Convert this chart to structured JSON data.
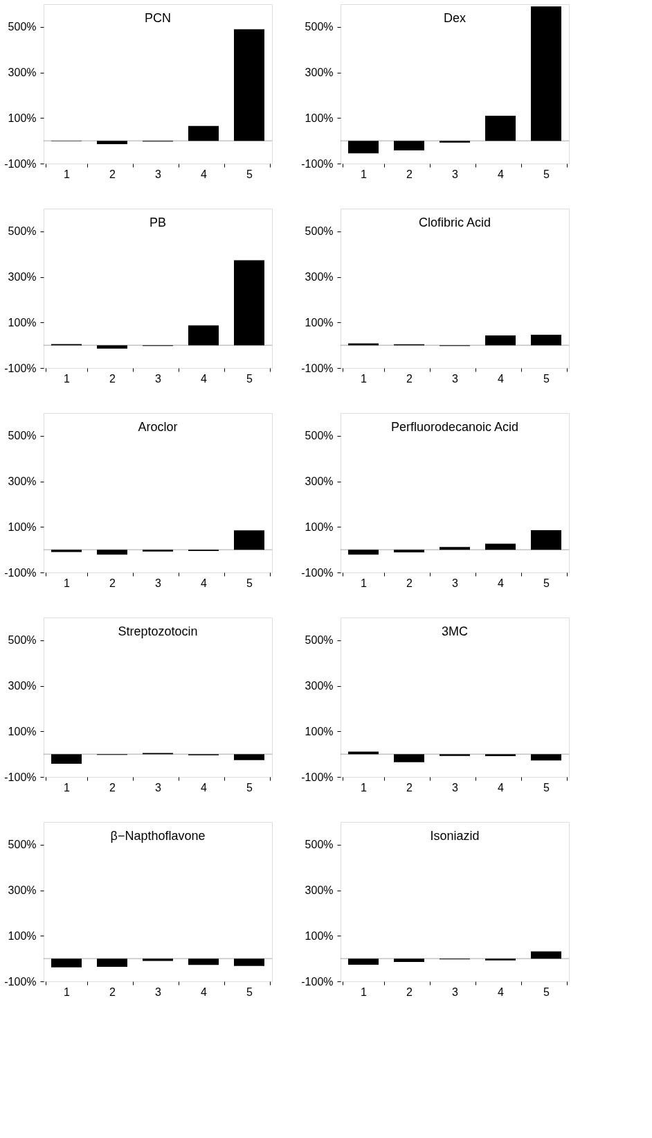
{
  "chart_data": [
    {
      "type": "bar",
      "title": "PCN",
      "categories": [
        "1",
        "2",
        "3",
        "4",
        "5"
      ],
      "values": [
        -2,
        -15,
        -3,
        65,
        490
      ],
      "color": "#000000",
      "ylim": [
        -100,
        600
      ],
      "yticks": [
        {
          "value": -100,
          "label": "-100%"
        },
        {
          "value": 100,
          "label": "100%"
        },
        {
          "value": 300,
          "label": "300%"
        },
        {
          "value": 500,
          "label": "500%"
        }
      ],
      "grid": false
    },
    {
      "type": "bar",
      "title": "Dex",
      "categories": [
        "1",
        "2",
        "3",
        "4",
        "5"
      ],
      "values": [
        -55,
        -42,
        -8,
        110,
        590
      ],
      "color": "#000000",
      "ylim": [
        -100,
        600
      ],
      "yticks": [
        {
          "value": -100,
          "label": "-100%"
        },
        {
          "value": 100,
          "label": "100%"
        },
        {
          "value": 300,
          "label": "300%"
        },
        {
          "value": 500,
          "label": "500%"
        }
      ],
      "grid": false
    },
    {
      "type": "bar",
      "title": "PB",
      "categories": [
        "1",
        "2",
        "3",
        "4",
        "5"
      ],
      "values": [
        5,
        -15,
        -3,
        87,
        373
      ],
      "color": "#000000",
      "ylim": [
        -100,
        600
      ],
      "yticks": [
        {
          "value": -100,
          "label": "-100%"
        },
        {
          "value": 100,
          "label": "100%"
        },
        {
          "value": 300,
          "label": "300%"
        },
        {
          "value": 500,
          "label": "500%"
        }
      ],
      "grid": false
    },
    {
      "type": "bar",
      "title": "Clofibric Acid",
      "categories": [
        "1",
        "2",
        "3",
        "4",
        "5"
      ],
      "values": [
        8,
        4,
        -3,
        43,
        46
      ],
      "color": "#000000",
      "ylim": [
        -100,
        600
      ],
      "yticks": [
        {
          "value": -100,
          "label": "-100%"
        },
        {
          "value": 100,
          "label": "100%"
        },
        {
          "value": 300,
          "label": "300%"
        },
        {
          "value": 500,
          "label": "500%"
        }
      ],
      "grid": false
    },
    {
      "type": "bar",
      "title": "Aroclor",
      "categories": [
        "1",
        "2",
        "3",
        "4",
        "5"
      ],
      "values": [
        -10,
        -22,
        -8,
        -6,
        85
      ],
      "color": "#000000",
      "ylim": [
        -100,
        600
      ],
      "yticks": [
        {
          "value": -100,
          "label": "-100%"
        },
        {
          "value": 100,
          "label": "100%"
        },
        {
          "value": 300,
          "label": "300%"
        },
        {
          "value": 500,
          "label": "500%"
        }
      ],
      "grid": false
    },
    {
      "type": "bar",
      "title": "Perfluorodecanoic Acid",
      "categories": [
        "1",
        "2",
        "3",
        "4",
        "5"
      ],
      "values": [
        -22,
        -12,
        12,
        26,
        86
      ],
      "color": "#000000",
      "ylim": [
        -100,
        600
      ],
      "yticks": [
        {
          "value": -100,
          "label": "-100%"
        },
        {
          "value": 100,
          "label": "100%"
        },
        {
          "value": 300,
          "label": "300%"
        },
        {
          "value": 500,
          "label": "500%"
        }
      ],
      "grid": false
    },
    {
      "type": "bar",
      "title": "Streptozotocin",
      "categories": [
        "1",
        "2",
        "3",
        "4",
        "5"
      ],
      "values": [
        -42,
        -3,
        5,
        -5,
        -26
      ],
      "color": "#000000",
      "ylim": [
        -100,
        600
      ],
      "yticks": [
        {
          "value": -100,
          "label": "-100%"
        },
        {
          "value": 100,
          "label": "100%"
        },
        {
          "value": 300,
          "label": "300%"
        },
        {
          "value": 500,
          "label": "500%"
        }
      ],
      "grid": false
    },
    {
      "type": "bar",
      "title": "3MC",
      "categories": [
        "1",
        "2",
        "3",
        "4",
        "5"
      ],
      "values": [
        11,
        -35,
        -8,
        -9,
        -28
      ],
      "color": "#000000",
      "ylim": [
        -100,
        600
      ],
      "yticks": [
        {
          "value": -100,
          "label": "-100%"
        },
        {
          "value": 100,
          "label": "100%"
        },
        {
          "value": 300,
          "label": "300%"
        },
        {
          "value": 500,
          "label": "500%"
        }
      ],
      "grid": false
    },
    {
      "type": "bar",
      "title": "β−Napthoflavone",
      "categories": [
        "1",
        "2",
        "3",
        "4",
        "5"
      ],
      "values": [
        -38,
        -36,
        -10,
        -28,
        -32
      ],
      "color": "#000000",
      "ylim": [
        -100,
        600
      ],
      "yticks": [
        {
          "value": -100,
          "label": "-100%"
        },
        {
          "value": 100,
          "label": "100%"
        },
        {
          "value": 300,
          "label": "300%"
        },
        {
          "value": 500,
          "label": "500%"
        }
      ],
      "grid": false
    },
    {
      "type": "bar",
      "title": "Isoniazid",
      "categories": [
        "1",
        "2",
        "3",
        "4",
        "5"
      ],
      "values": [
        -27,
        -15,
        -3,
        -8,
        32
      ],
      "color": "#000000",
      "ylim": [
        -100,
        600
      ],
      "yticks": [
        {
          "value": -100,
          "label": "-100%"
        },
        {
          "value": 100,
          "label": "100%"
        },
        {
          "value": 300,
          "label": "300%"
        },
        {
          "value": 500,
          "label": "500%"
        }
      ],
      "grid": false
    }
  ]
}
